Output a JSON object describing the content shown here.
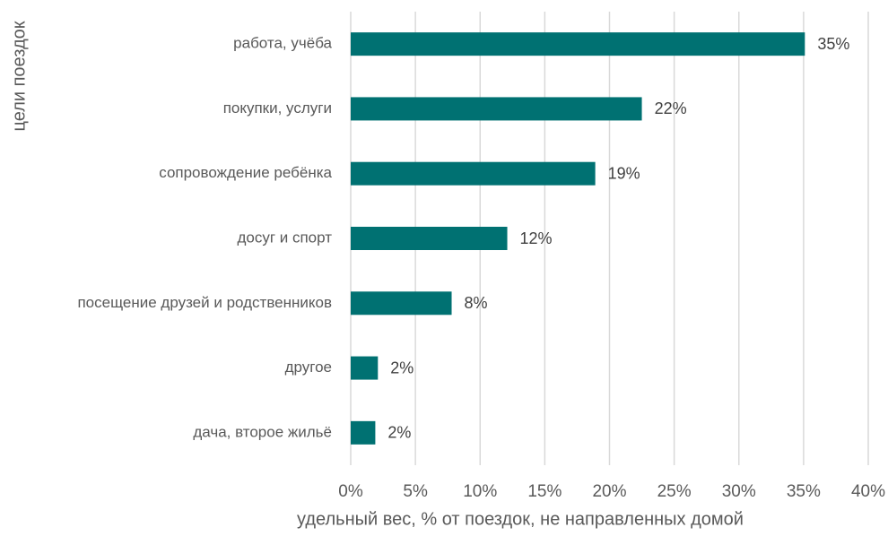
{
  "chart_data": {
    "type": "bar",
    "orientation": "horizontal",
    "categories": [
      "работа, учёба",
      "покупки, услуги",
      "сопровождение ребёнка",
      "досуг и спорт",
      "посещение друзей и родственников",
      "другое",
      "дача, второе жильё"
    ],
    "values": [
      35.1,
      22.5,
      18.9,
      12.1,
      7.8,
      2.1,
      1.9
    ],
    "value_labels": [
      "35%",
      "22%",
      "19%",
      "12%",
      "8%",
      "2%",
      "2%"
    ],
    "color": "#007172",
    "xlabel": "удельный вес, % от поездок, не направленных домой",
    "ylabel": "цели поездок",
    "xlim": [
      0,
      40
    ],
    "xticks": [
      {
        "value": 0,
        "label": "0%"
      },
      {
        "value": 5,
        "label": "5%"
      },
      {
        "value": 10,
        "label": "10%"
      },
      {
        "value": 15,
        "label": "15%"
      },
      {
        "value": 20,
        "label": "20%"
      },
      {
        "value": 25,
        "label": "25%"
      },
      {
        "value": 30,
        "label": "30%"
      },
      {
        "value": 35,
        "label": "35%"
      },
      {
        "value": 40,
        "label": "40%"
      }
    ],
    "grid": true
  }
}
